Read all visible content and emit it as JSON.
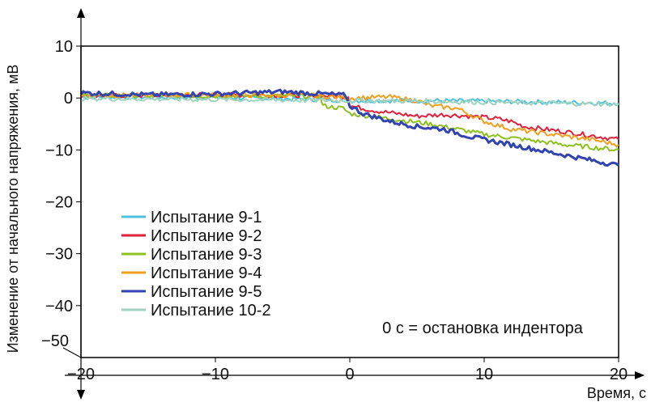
{
  "chart_data": {
    "type": "line",
    "title": "",
    "xlabel": "Время, с",
    "ylabel": "Изменение от начального напряжения, мВ",
    "xlim": [
      -20,
      20
    ],
    "ylim": [
      -50,
      10
    ],
    "x_ticks": [
      -20,
      -10,
      0,
      10,
      20
    ],
    "y_ticks": [
      10,
      0,
      -10,
      -20,
      -30,
      -40,
      -50
    ],
    "x_tick_labels": [
      "−20",
      "−10",
      "0",
      "10",
      "20"
    ],
    "y_tick_labels": [
      "10",
      "0",
      "−10",
      "−20",
      "−30",
      "−40",
      "−50"
    ],
    "grid": false,
    "legend_position": "lower-left",
    "annotation": "0 с = остановка индентора",
    "series": [
      {
        "name": "Испытание 9-1",
        "color": "#4fc1dc",
        "points": [
          [
            -20,
            0.2
          ],
          [
            -10,
            0.1
          ],
          [
            -2,
            -0.3
          ],
          [
            0,
            -0.5
          ],
          [
            5,
            -0.5
          ],
          [
            10,
            -0.6
          ],
          [
            15,
            -0.8
          ],
          [
            20,
            -1.0
          ]
        ]
      },
      {
        "name": "Испытание 9-2",
        "color": "#e0203c",
        "points": [
          [
            -20,
            0.4
          ],
          [
            -10,
            0.6
          ],
          [
            -3,
            0.5
          ],
          [
            -0.1,
            0.3
          ],
          [
            0,
            -1.5
          ],
          [
            2,
            -2.5
          ],
          [
            5,
            -3.5
          ],
          [
            7,
            -3.2
          ],
          [
            9,
            -3.5
          ],
          [
            11,
            -4.0
          ],
          [
            12,
            -4.5
          ],
          [
            13,
            -5.5
          ],
          [
            16,
            -6.5
          ],
          [
            20,
            -8.0
          ]
        ]
      },
      {
        "name": "Испытание 9-3",
        "color": "#8dc11e",
        "points": [
          [
            -20,
            0.5
          ],
          [
            -10,
            0.4
          ],
          [
            -2.2,
            0.4
          ],
          [
            -2,
            -1.5
          ],
          [
            -0.5,
            -2.0
          ],
          [
            0,
            -3.0
          ],
          [
            3,
            -4.0
          ],
          [
            6,
            -5.0
          ],
          [
            8,
            -6.0
          ],
          [
            10,
            -7.0
          ],
          [
            13,
            -8.0
          ],
          [
            16,
            -9.0
          ],
          [
            20,
            -10.0
          ]
        ]
      },
      {
        "name": "Испытание 9-4",
        "color": "#f0a020",
        "points": [
          [
            -20,
            0.5
          ],
          [
            -10,
            0.6
          ],
          [
            -3,
            0.5
          ],
          [
            0,
            0.0
          ],
          [
            3,
            0.2
          ],
          [
            5,
            -0.5
          ],
          [
            6,
            -1.5
          ],
          [
            8,
            -2.0
          ],
          [
            10,
            -4.5
          ],
          [
            12,
            -6.0
          ],
          [
            15,
            -7.0
          ],
          [
            18,
            -8.0
          ],
          [
            20,
            -9.0
          ]
        ]
      },
      {
        "name": "Испытание 9-5",
        "color": "#3344b0",
        "points": [
          [
            -20,
            1.0
          ],
          [
            -15,
            0.6
          ],
          [
            -10,
            0.8
          ],
          [
            -5,
            1.2
          ],
          [
            -2,
            0.8
          ],
          [
            -0.3,
            0.5
          ],
          [
            0,
            -1.5
          ],
          [
            1,
            -3.0
          ],
          [
            3,
            -4.5
          ],
          [
            5,
            -5.5
          ],
          [
            7,
            -6.0
          ],
          [
            9,
            -7.5
          ],
          [
            11,
            -8.5
          ],
          [
            13,
            -9.5
          ],
          [
            15,
            -10.5
          ],
          [
            17,
            -11.5
          ],
          [
            19,
            -12.5
          ],
          [
            20,
            -13.0
          ]
        ]
      },
      {
        "name": "Испытание 10-2",
        "color": "#9fd3c0",
        "points": [
          [
            -20,
            -0.1
          ],
          [
            -10,
            -0.3
          ],
          [
            -5,
            -0.4
          ],
          [
            0,
            -0.5
          ],
          [
            5,
            -0.6
          ],
          [
            10,
            -0.8
          ],
          [
            15,
            -1.0
          ],
          [
            20,
            -1.2
          ]
        ]
      }
    ]
  }
}
